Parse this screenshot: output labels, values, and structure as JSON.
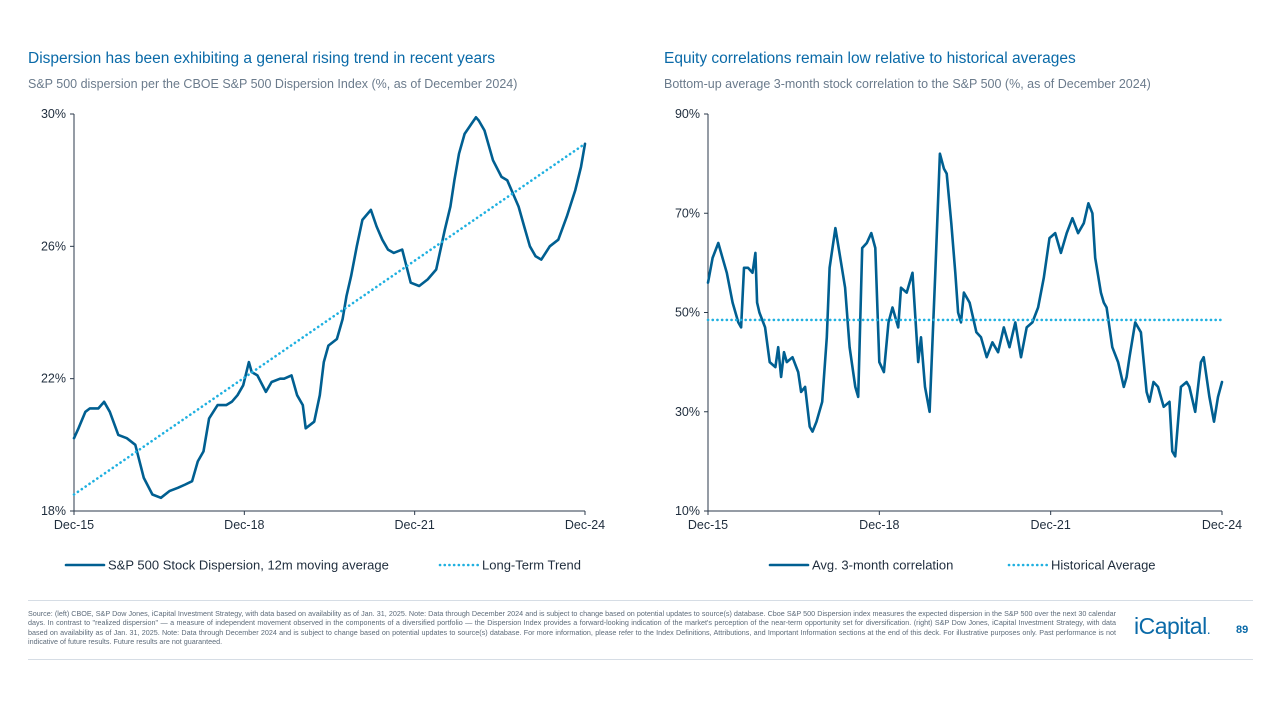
{
  "colors": {
    "primary": "#005f91",
    "secondary": "#1fb0e0",
    "axis": "#2b3a4b",
    "title": "#0a6aa8"
  },
  "chart_data": [
    {
      "type": "line",
      "title": "Dispersion has been exhibiting a general rising trend in recent years",
      "subtitle": "S&P 500 dispersion per the CBOE S&P 500 Dispersion Index (%, as of December 2024)",
      "xlabel": "",
      "ylabel": "",
      "x_ticks": [
        "Dec-15",
        "Dec-18",
        "Dec-21",
        "Dec-24"
      ],
      "x_range": [
        2015.92,
        2024.92
      ],
      "y_ticks": [
        "18%",
        "22%",
        "26%",
        "30%"
      ],
      "y_tick_values": [
        18,
        22,
        26,
        30
      ],
      "ylim": [
        18,
        30
      ],
      "series": [
        {
          "name": "S&P 500 Stock Dispersion, 12m moving average",
          "style": "solid",
          "x": [
            2015.92,
            2016.0,
            2016.12,
            2016.2,
            2016.35,
            2016.45,
            2016.55,
            2016.7,
            2016.85,
            2017.0,
            2017.15,
            2017.3,
            2017.45,
            2017.6,
            2017.75,
            2017.88,
            2018.0,
            2018.1,
            2018.2,
            2018.3,
            2018.45,
            2018.6,
            2018.7,
            2018.8,
            2018.9,
            2019.0,
            2019.05,
            2019.15,
            2019.3,
            2019.4,
            2019.55,
            2019.62,
            2019.75,
            2019.85,
            2019.95,
            2020.0,
            2020.15,
            2020.25,
            2020.32,
            2020.4,
            2020.55,
            2020.65,
            2020.72,
            2020.8,
            2020.9,
            2021.0,
            2021.15,
            2021.25,
            2021.35,
            2021.45,
            2021.55,
            2021.7,
            2021.85,
            2022.0,
            2022.15,
            2022.3,
            2022.45,
            2022.55,
            2022.62,
            2022.7,
            2022.8,
            2022.92,
            2023.0,
            2023.05,
            2023.15,
            2023.3,
            2023.45,
            2023.55,
            2023.65,
            2023.75,
            2023.85,
            2023.95,
            2024.05,
            2024.15,
            2024.3,
            2024.45,
            2024.6,
            2024.75,
            2024.85,
            2024.92
          ],
          "values": [
            20.2,
            20.5,
            21.0,
            21.1,
            21.1,
            21.3,
            21.0,
            20.3,
            20.2,
            20.0,
            19.0,
            18.5,
            18.4,
            18.6,
            18.7,
            18.8,
            18.9,
            19.5,
            19.8,
            20.8,
            21.2,
            21.2,
            21.3,
            21.5,
            21.8,
            22.5,
            22.2,
            22.1,
            21.6,
            21.9,
            22.0,
            22.0,
            22.1,
            21.5,
            21.2,
            20.5,
            20.7,
            21.5,
            22.5,
            23.0,
            23.2,
            23.8,
            24.5,
            25.1,
            26.0,
            26.8,
            27.1,
            26.6,
            26.2,
            25.9,
            25.8,
            25.9,
            24.9,
            24.8,
            25.0,
            25.3,
            26.5,
            27.2,
            28.0,
            28.8,
            29.4,
            29.7,
            29.9,
            29.8,
            29.5,
            28.6,
            28.1,
            28.0,
            27.6,
            27.2,
            26.6,
            26.0,
            25.7,
            25.6,
            26.0,
            26.2,
            26.9,
            27.7,
            28.4,
            29.1
          ]
        },
        {
          "name": "Long-Term Trend",
          "style": "dotted",
          "x": [
            2015.92,
            2024.92
          ],
          "values": [
            18.5,
            29.1
          ]
        }
      ]
    },
    {
      "type": "line",
      "title": "Equity correlations remain low relative to historical averages",
      "subtitle": "Bottom-up average 3-month stock correlation to the S&P 500 (%, as of December 2024)",
      "xlabel": "",
      "ylabel": "",
      "x_ticks": [
        "Dec-15",
        "Dec-18",
        "Dec-21",
        "Dec-24"
      ],
      "x_range": [
        2015.92,
        2024.92
      ],
      "y_ticks": [
        "10%",
        "30%",
        "50%",
        "70%",
        "90%"
      ],
      "y_tick_values": [
        10,
        30,
        50,
        70,
        90
      ],
      "ylim": [
        10,
        90
      ],
      "series": [
        {
          "name": "Avg. 3-month correlation",
          "style": "solid",
          "x": [
            2015.92,
            2016.0,
            2016.1,
            2016.15,
            2016.25,
            2016.35,
            2016.45,
            2016.5,
            2016.55,
            2016.62,
            2016.7,
            2016.75,
            2016.78,
            2016.82,
            2016.92,
            2017.0,
            2017.1,
            2017.15,
            2017.2,
            2017.25,
            2017.3,
            2017.4,
            2017.5,
            2017.55,
            2017.62,
            2017.7,
            2017.75,
            2017.82,
            2017.92,
            2018.0,
            2018.05,
            2018.15,
            2018.25,
            2018.32,
            2018.4,
            2018.5,
            2018.55,
            2018.62,
            2018.7,
            2018.78,
            2018.85,
            2018.92,
            2019.0,
            2019.08,
            2019.15,
            2019.25,
            2019.3,
            2019.4,
            2019.5,
            2019.6,
            2019.65,
            2019.72,
            2019.8,
            2019.9,
            2019.98,
            2020.05,
            2020.1,
            2020.18,
            2020.25,
            2020.3,
            2020.35,
            2020.4,
            2020.5,
            2020.6,
            2020.62,
            2020.7,
            2020.8,
            2020.9,
            2021.0,
            2021.1,
            2021.2,
            2021.3,
            2021.4,
            2021.5,
            2021.6,
            2021.7,
            2021.8,
            2021.9,
            2022.0,
            2022.1,
            2022.2,
            2022.3,
            2022.4,
            2022.5,
            2022.58,
            2022.65,
            2022.7,
            2022.8,
            2022.85,
            2022.9,
            2023.0,
            2023.1,
            2023.2,
            2023.25,
            2023.3,
            2023.4,
            2023.5,
            2023.6,
            2023.65,
            2023.72,
            2023.8,
            2023.9,
            2024.0,
            2024.05,
            2024.1,
            2024.2,
            2024.3,
            2024.35,
            2024.45,
            2024.55,
            2024.6,
            2024.7,
            2024.78,
            2024.85,
            2024.92
          ],
          "values": [
            56,
            61,
            64,
            62,
            58,
            52,
            48,
            47,
            59,
            59,
            58,
            62,
            52,
            50,
            47,
            40,
            39,
            43,
            37,
            42,
            40,
            41,
            38,
            34,
            35,
            27,
            26,
            28,
            32,
            45,
            59,
            67,
            60,
            55,
            43,
            35,
            33,
            63,
            64,
            66,
            63,
            40,
            38,
            48,
            51,
            47,
            55,
            54,
            58,
            40,
            45,
            35,
            30,
            58,
            82,
            79,
            78,
            68,
            58,
            50,
            48,
            54,
            52,
            47,
            46,
            45,
            41,
            44,
            42,
            47,
            43,
            48,
            41,
            47,
            48,
            51,
            57,
            65,
            66,
            62,
            66,
            69,
            66,
            68,
            72,
            70,
            61,
            54,
            52,
            51,
            43,
            40,
            35,
            37,
            41,
            48,
            46,
            34,
            32,
            36,
            35,
            31,
            32,
            22,
            21,
            35,
            36,
            35,
            30,
            40,
            41,
            33,
            28,
            33,
            36
          ]
        },
        {
          "name": "Historical Average",
          "style": "dotted",
          "x": [
            2015.92,
            2024.92
          ],
          "values": [
            48.5,
            48.5
          ]
        }
      ]
    }
  ],
  "footer": {
    "source_note": "Source: (left) CBOE, S&P Dow Jones, iCapital Investment Strategy, with data based on availability as of Jan. 31, 2025. Note: Data through December 2024 and is subject to change based on potential updates to source(s) database. Cboe S&P 500 Dispersion index measures the expected dispersion in the S&P 500 over the next 30 calendar days. In contrast to \"realized dispersion\" — a measure of independent movement observed in the components of a diversified portfolio — the Dispersion Index provides a forward-looking indication of the market's perception of the near-term opportunity set for diversification. (right) S&P Dow Jones, iCapital Investment Strategy, with data based on availability as of Jan. 31, 2025. Note: Data through December 2024 and is subject to change based on potential updates to source(s) database. For more information, please refer to the Index Definitions, Attributions, and Important Information sections at the end of this deck. For illustrative purposes only. Past performance is not indicative of future results. Future results are not guaranteed.",
    "logo_text": "iCapital",
    "logo_mark": ".",
    "page_number": "89"
  }
}
